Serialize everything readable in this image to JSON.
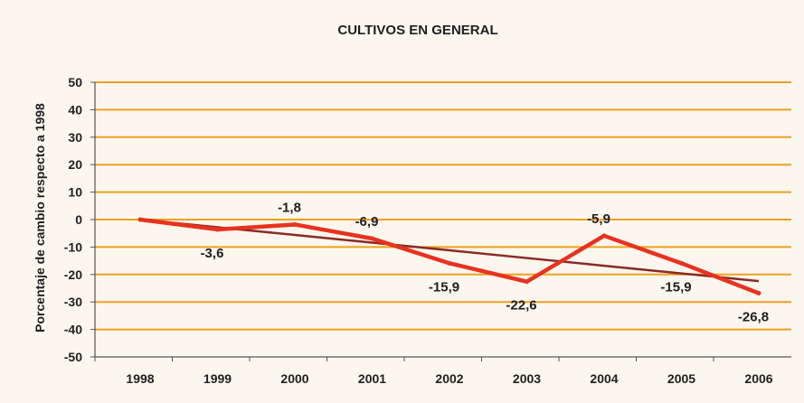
{
  "chart_data": {
    "type": "line",
    "title": "CULTIVOS EN GENERAL",
    "ylabel": "Porcentaje de cambio respecto a 1998",
    "xlabel": "",
    "categories": [
      "1998",
      "1999",
      "2000",
      "2001",
      "2002",
      "2003",
      "2004",
      "2005",
      "2006"
    ],
    "ylim": [
      -50,
      50
    ],
    "yticks": [
      50,
      40,
      30,
      20,
      10,
      0,
      -10,
      -20,
      -30,
      -40,
      -50
    ],
    "grid": true,
    "series": [
      {
        "values": [
          0,
          -3.6,
          -1.8,
          -6.9,
          -15.9,
          -22.6,
          -5.9,
          -15.9,
          -26.8
        ],
        "color": "#e8321e"
      },
      {
        "type": "trendline",
        "values": [
          0,
          -2.8,
          -5.6,
          -8.4,
          -11.2,
          -14.0,
          -16.8,
          -19.6,
          -22.4
        ],
        "color": "#8b2a24"
      }
    ],
    "data_labels": [
      {
        "category": "1999",
        "text": "-3,6",
        "value": -3.6
      },
      {
        "category": "2000",
        "text": "-1,8",
        "value": -1.8
      },
      {
        "category": "2001",
        "text": "-6,9",
        "value": -6.9
      },
      {
        "category": "2002",
        "text": "-15,9",
        "value": -15.9
      },
      {
        "category": "2003",
        "text": "-22,6",
        "value": -22.6
      },
      {
        "category": "2004",
        "text": "-5,9",
        "value": -5.9
      },
      {
        "category": "2005",
        "text": "-15,9",
        "value": -15.9
      },
      {
        "category": "2006",
        "text": "-26,8",
        "value": -26.8
      }
    ],
    "gridline_color": "#f0a020"
  }
}
